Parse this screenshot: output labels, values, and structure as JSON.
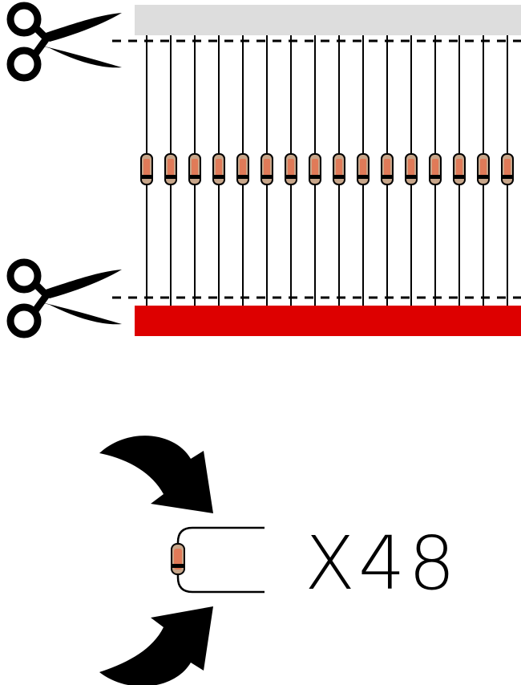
{
  "diagram": {
    "quantity_label": "X48",
    "component_count": 16,
    "colors": {
      "top_tape": "#dddddd",
      "bottom_tape": "#dd0000",
      "ink": "#000000",
      "diode_body": "#c8a68a",
      "diode_glass": "#e07a58",
      "cut_line": "#000000"
    },
    "icons": [
      "scissors-icon",
      "scissors-icon",
      "curved-arrow-icon",
      "curved-arrow-icon"
    ]
  }
}
